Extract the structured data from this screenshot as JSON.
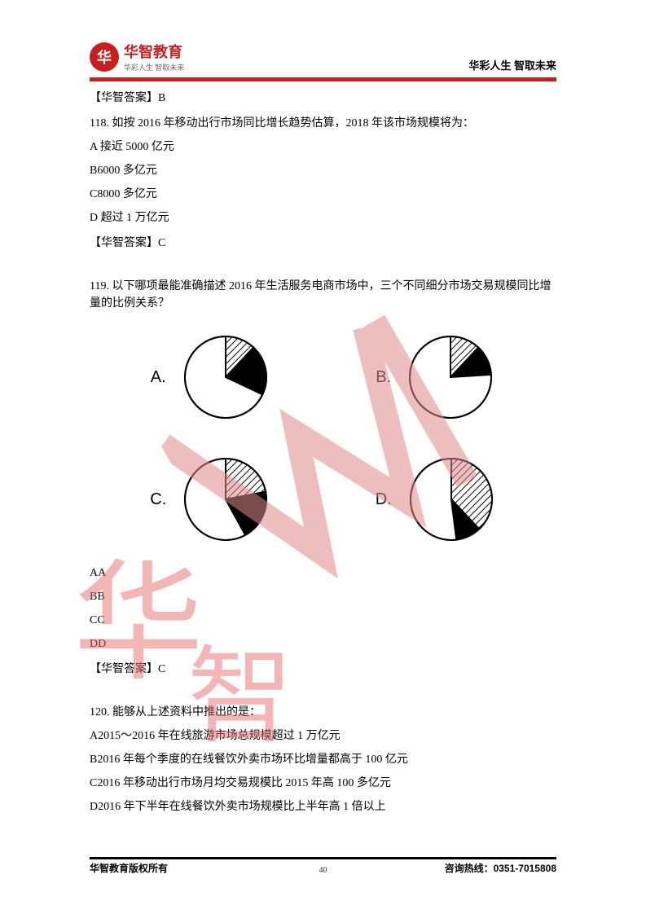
{
  "header": {
    "logo_glyph": "华",
    "logo_main": "华智教育",
    "logo_sub": "华彩人生 智取未来",
    "right_text": "华彩人生 智取未来"
  },
  "colors": {
    "brand_red": "#c71f1f",
    "text": "#000000",
    "page_bg": "#ffffff",
    "chart_stroke": "#000000"
  },
  "body": {
    "ans_top": "【华智答案】B",
    "q118": {
      "text": "118. 如按 2016 年移动出行市场同比增长趋势估算，2018 年该市场规模将为：",
      "optA": "A 接近 5000 亿元",
      "optB": "B6000 多亿元",
      "optC": "C8000 多亿元",
      "optD": "D 超过 1 万亿元",
      "answer": "【华智答案】C"
    },
    "q119": {
      "text": "119. 以下哪项最能准确描述 2016 年生活服务电商市场中，三个不同细分市场交易规模同比增量的比例关系？",
      "charts": {
        "A": {
          "label": "A.",
          "stroke": "#000000",
          "stroke_width": 2,
          "radius": 50,
          "slices": [
            {
              "frac": 0.12,
              "fill": "hatch"
            },
            {
              "frac": 0.2,
              "fill": "black"
            },
            {
              "frac": 0.68,
              "fill": "white"
            }
          ]
        },
        "B": {
          "label": "B.",
          "stroke": "#000000",
          "stroke_width": 2,
          "radius": 50,
          "slices": [
            {
              "frac": 0.12,
              "fill": "hatch"
            },
            {
              "frac": 0.12,
              "fill": "black"
            },
            {
              "frac": 0.76,
              "fill": "white"
            }
          ]
        },
        "C": {
          "label": "C.",
          "stroke": "#000000",
          "stroke_width": 2,
          "radius": 50,
          "slices": [
            {
              "frac": 0.22,
              "fill": "hatch"
            },
            {
              "frac": 0.2,
              "fill": "black"
            },
            {
              "frac": 0.58,
              "fill": "white"
            }
          ]
        },
        "D": {
          "label": "D.",
          "stroke": "#000000",
          "stroke_width": 2,
          "radius": 50,
          "slices": [
            {
              "frac": 0.38,
              "fill": "hatch"
            },
            {
              "frac": 0.1,
              "fill": "black"
            },
            {
              "frac": 0.52,
              "fill": "white"
            }
          ]
        }
      },
      "after": {
        "aa": "AA",
        "bb": "BB",
        "cc": "CC",
        "dd": "DD"
      },
      "answer": "【华智答案】C"
    },
    "q120": {
      "text": "120. 能够从上述资料中推出的是：",
      "optA": "A2015～2016 年在线旅游市场总规模超过 1 万亿元",
      "optB": "B2016 年每个季度的在线餐饮外卖市场环比增量都高于 100 亿元",
      "optC": "C2016 年移动出行市场月均交易规模比 2015 年高 100 多亿元",
      "optD": "D2016 年下半年在线餐饮外卖市场规模比上半年高 1 倍以上"
    }
  },
  "footer": {
    "left": "华智教育版权所有",
    "right": "咨询热线：0351-7015808",
    "page_num": "40"
  }
}
